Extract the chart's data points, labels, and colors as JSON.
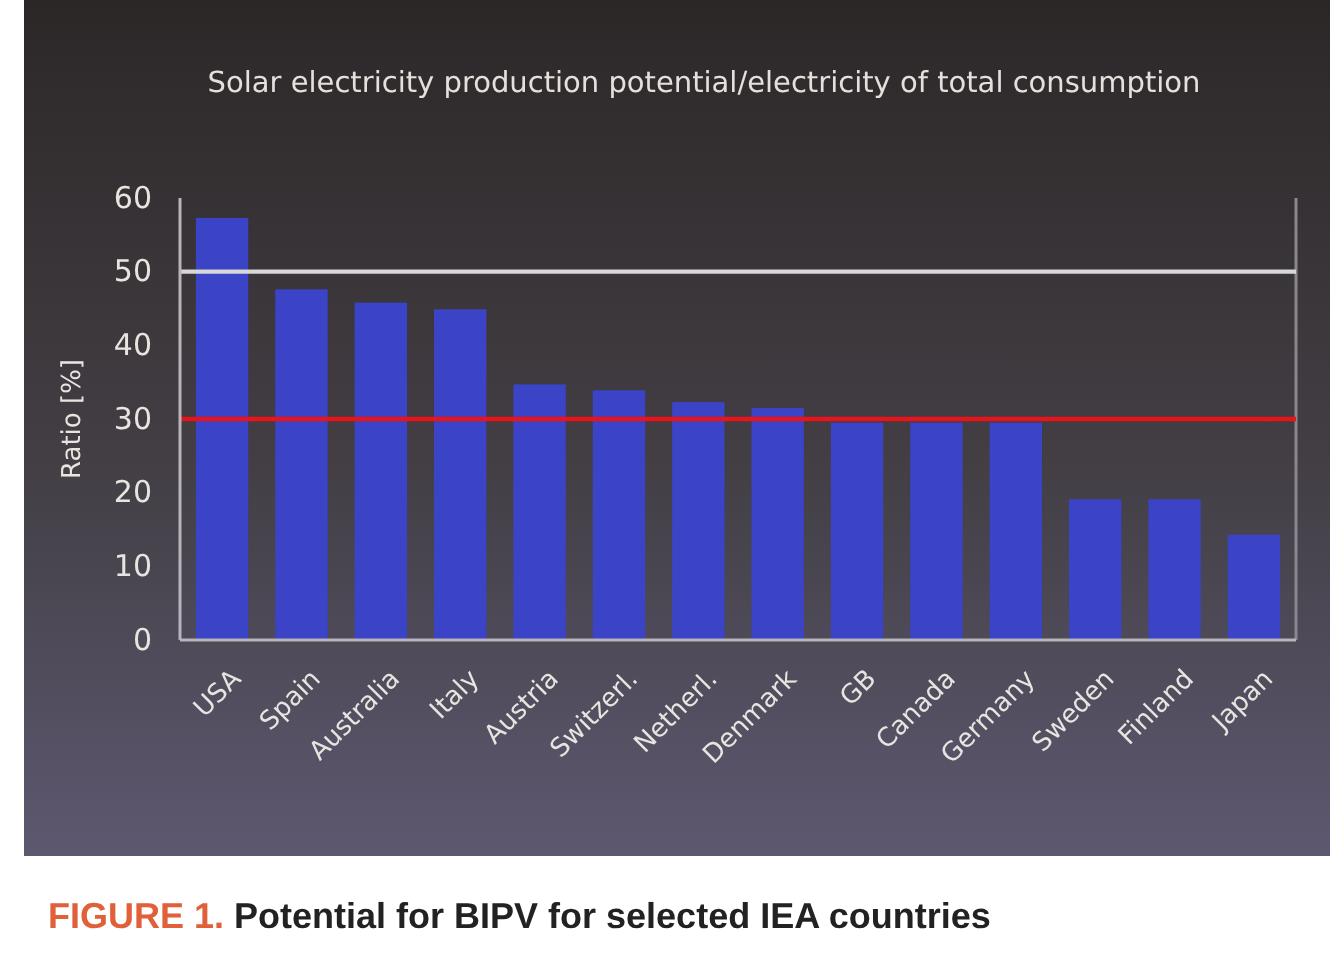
{
  "chart_data": {
    "type": "bar",
    "title": "Solar electricity production potential/electricity of total consumption",
    "ylabel": "Ratio [%]",
    "categories": [
      "USA",
      "Spain",
      "Australia",
      "Italy",
      "Austria",
      "Switzerl.",
      "Netherl.",
      "Denmark",
      "GB",
      "Canada",
      "Germany",
      "Sweden",
      "Finland",
      "Japan"
    ],
    "values": [
      57.3,
      47.6,
      45.8,
      44.9,
      34.7,
      33.9,
      32.3,
      31.5,
      29.5,
      29.5,
      29.5,
      19.1,
      19.1,
      14.3
    ],
    "color": "#3b43c6",
    "ylim": [
      0,
      60
    ],
    "yticks": [
      0,
      10,
      20,
      30,
      40,
      50,
      60
    ],
    "grid": false,
    "ref_lines": [
      {
        "axis": "y",
        "value": 50,
        "color": "#d8d8d8"
      },
      {
        "axis": "y",
        "value": 30,
        "color": "#e8141c"
      }
    ],
    "annotations": [
      "FIGURE 1. Potential for BIPV for selected IEA countries"
    ]
  }
}
